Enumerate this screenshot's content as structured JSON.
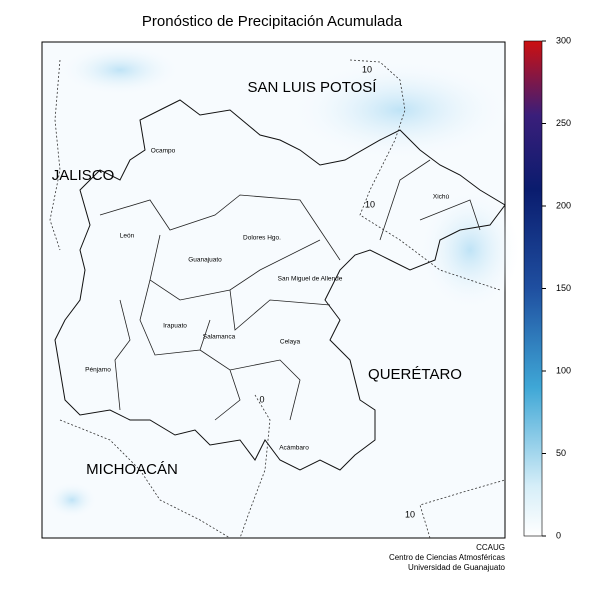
{
  "title": "Pronóstico de Precipitación Acumulada",
  "map": {
    "states": [
      "SAN LUIS POTOSÍ",
      "JALISCO",
      "QUERÉTARO",
      "MICHOACÁN"
    ],
    "cities": [
      "Ocampo",
      "León",
      "Guanajuato",
      "Dolores Hgo.",
      "San Miguel de Allende",
      "Xichú",
      "Irapuato",
      "Salamanca",
      "Celaya",
      "Pénjamo",
      "Acámbaro"
    ],
    "contour_labels": [
      "10",
      "10",
      "0",
      "10"
    ]
  },
  "colorbar": {
    "lim": [
      0,
      300
    ],
    "ticks": [
      0,
      50,
      100,
      150,
      200,
      250,
      300
    ]
  },
  "credits": [
    "CCAUG",
    "Centro de Ciencias Atmosféricas",
    "Universidad de Guanajuato"
  ]
}
